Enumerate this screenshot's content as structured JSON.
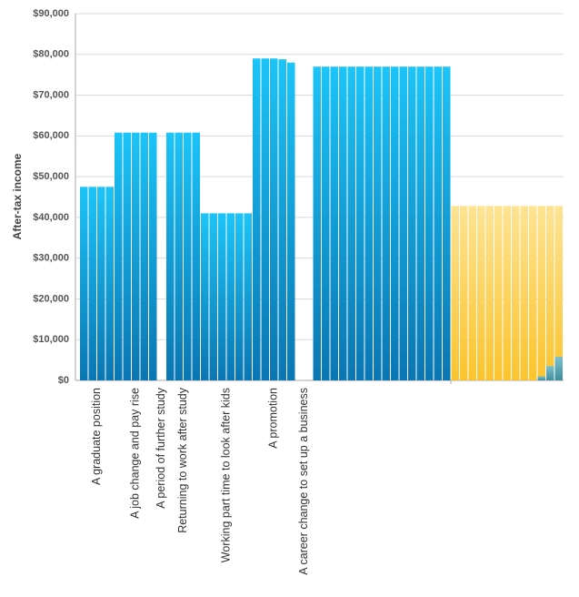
{
  "chart_data": {
    "type": "bar",
    "y_label": "After-tax income",
    "ylim": [
      0,
      90000
    ],
    "yticks": [
      {
        "value": 0,
        "label": "$0"
      },
      {
        "value": 10000,
        "label": "$10,000"
      },
      {
        "value": 20000,
        "label": "$20,000"
      },
      {
        "value": 30000,
        "label": "$30,000"
      },
      {
        "value": 40000,
        "label": "$40,000"
      },
      {
        "value": 50000,
        "label": "$50,000"
      },
      {
        "value": 60000,
        "label": "$60,000"
      },
      {
        "value": 70000,
        "label": "$70,000"
      },
      {
        "value": 80000,
        "label": "$80,000"
      },
      {
        "value": 90000,
        "label": "$90,000"
      }
    ],
    "grid": true,
    "colors": [
      "#1cc4f8",
      "#0a76b2"
    ],
    "groups": [
      {
        "label": "A graduate position",
        "values": [
          47500,
          47500,
          47500,
          47500
        ]
      },
      {
        "label": "A job change and pay rise",
        "values": [
          60800,
          60800,
          60800,
          60800,
          60800
        ]
      },
      {
        "label": "A period of further study",
        "values": [
          0
        ]
      },
      {
        "label": "Returning to work after study",
        "values": [
          60800,
          60800,
          60800,
          60800
        ]
      },
      {
        "label": "Working part time to look after kids",
        "values": [
          41000,
          41000,
          41000,
          41000,
          41000,
          41000
        ]
      },
      {
        "label": "A promotion",
        "values": [
          79000,
          79000,
          79000,
          78800,
          78000
        ]
      },
      {
        "label": "A career change to set up a business",
        "values": [
          0,
          0
        ]
      },
      {
        "label": null,
        "values": [
          77000,
          77000,
          77000,
          77000,
          77000,
          77000,
          77000,
          77000,
          77000,
          77000,
          77000,
          77000,
          77000,
          77000,
          77000,
          77000
        ]
      }
    ],
    "retirement": {
      "colors": [
        "#fde393",
        "#fbc42e"
      ],
      "values": [
        42800,
        42800,
        42800,
        42800,
        42800,
        42800,
        42800,
        42800,
        42800,
        42800,
        42800,
        42800,
        42800
      ]
    },
    "savings": {
      "colors": [
        "#7cc0cc",
        "#3e8e9e"
      ],
      "values": [
        null,
        null,
        null,
        null,
        null,
        null,
        null,
        null,
        null,
        null,
        1000,
        3500,
        5800
      ]
    }
  }
}
